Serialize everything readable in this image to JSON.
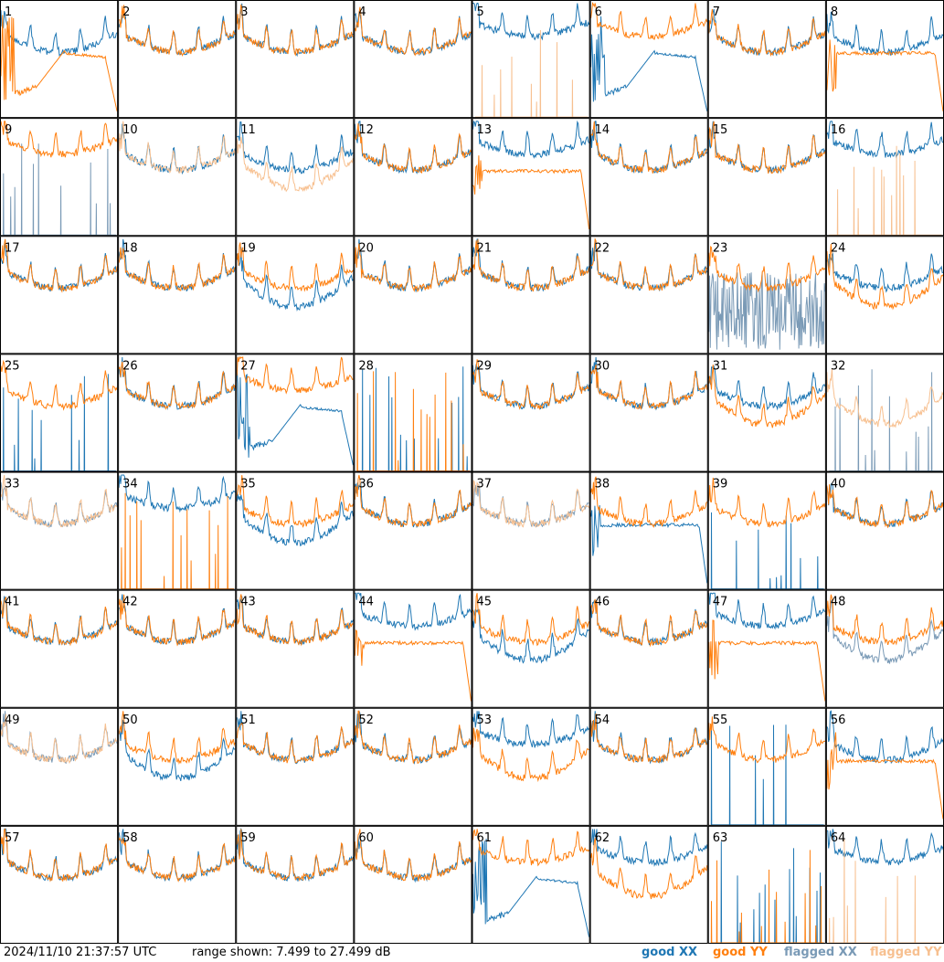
{
  "chart_data": {
    "type": "line",
    "description_panels": "8x8 grid of antenna spectra",
    "panels": [
      {
        "label": "1",
        "xx": "good",
        "yy": "good",
        "xx_shape": "ripple",
        "yy_shape": "broken_dip"
      },
      {
        "label": "2",
        "xx": "good",
        "yy": "good",
        "xx_shape": "ripple",
        "yy_shape": "ripple"
      },
      {
        "label": "3",
        "xx": "good",
        "yy": "good",
        "xx_shape": "ripple",
        "yy_shape": "ripple"
      },
      {
        "label": "4",
        "xx": "good",
        "yy": "good",
        "xx_shape": "ripple",
        "yy_shape": "ripple"
      },
      {
        "label": "5",
        "xx": "good",
        "yy": "flagged",
        "xx_shape": "ripple_high",
        "yy_shape": "spikes"
      },
      {
        "label": "6",
        "xx": "good",
        "yy": "good",
        "xx_shape": "broken_dip",
        "yy_shape": "ripple_high"
      },
      {
        "label": "7",
        "xx": "good",
        "yy": "good",
        "xx_shape": "ripple",
        "yy_shape": "ripple"
      },
      {
        "label": "8",
        "xx": "good",
        "yy": "good",
        "xx_shape": "ripple",
        "yy_shape": "broken_flat"
      },
      {
        "label": "9",
        "xx": "flagged",
        "yy": "good",
        "xx_shape": "spikes",
        "yy_shape": "ripple_high"
      },
      {
        "label": "10",
        "xx": "good",
        "yy": "flagged",
        "xx_shape": "ripple",
        "yy_shape": "ripple"
      },
      {
        "label": "11",
        "xx": "good",
        "yy": "flagged",
        "xx_shape": "ripple",
        "yy_shape": "ripple_low"
      },
      {
        "label": "12",
        "xx": "good",
        "yy": "good",
        "xx_shape": "ripple",
        "yy_shape": "ripple"
      },
      {
        "label": "13",
        "xx": "good",
        "yy": "good",
        "xx_shape": "ripple_high",
        "yy_shape": "broken_flat"
      },
      {
        "label": "14",
        "xx": "good",
        "yy": "good",
        "xx_shape": "ripple",
        "yy_shape": "ripple"
      },
      {
        "label": "15",
        "xx": "good",
        "yy": "good",
        "xx_shape": "ripple",
        "yy_shape": "ripple"
      },
      {
        "label": "16",
        "xx": "good",
        "yy": "flagged",
        "xx_shape": "ripple_high",
        "yy_shape": "spikes"
      },
      {
        "label": "17",
        "xx": "good",
        "yy": "good",
        "xx_shape": "ripple",
        "yy_shape": "ripple"
      },
      {
        "label": "18",
        "xx": "good",
        "yy": "good",
        "xx_shape": "ripple",
        "yy_shape": "ripple"
      },
      {
        "label": "19",
        "xx": "good",
        "yy": "good",
        "xx_shape": "ripple_low",
        "yy_shape": "ripple"
      },
      {
        "label": "20",
        "xx": "good",
        "yy": "good",
        "xx_shape": "ripple",
        "yy_shape": "ripple"
      },
      {
        "label": "21",
        "xx": "good",
        "yy": "good",
        "xx_shape": "ripple",
        "yy_shape": "ripple"
      },
      {
        "label": "22",
        "xx": "good",
        "yy": "good",
        "xx_shape": "ripple",
        "yy_shape": "ripple"
      },
      {
        "label": "23",
        "xx": "flagged",
        "yy": "good",
        "xx_shape": "noise",
        "yy_shape": "ripple"
      },
      {
        "label": "24",
        "xx": "good",
        "yy": "good",
        "xx_shape": "ripple",
        "yy_shape": "ripple_low"
      },
      {
        "label": "25",
        "xx": "good",
        "yy": "good",
        "xx_shape": "spikes",
        "yy_shape": "ripple"
      },
      {
        "label": "26",
        "xx": "good",
        "yy": "good",
        "xx_shape": "ripple",
        "yy_shape": "ripple"
      },
      {
        "label": "27",
        "xx": "good",
        "yy": "good",
        "xx_shape": "broken_dip",
        "yy_shape": "ripple_high"
      },
      {
        "label": "28",
        "xx": "good",
        "yy": "good",
        "xx_shape": "spikes",
        "yy_shape": "spikes"
      },
      {
        "label": "29",
        "xx": "good",
        "yy": "good",
        "xx_shape": "ripple",
        "yy_shape": "ripple"
      },
      {
        "label": "30",
        "xx": "good",
        "yy": "good",
        "xx_shape": "ripple",
        "yy_shape": "ripple"
      },
      {
        "label": "31",
        "xx": "good",
        "yy": "good",
        "xx_shape": "ripple",
        "yy_shape": "ripple_low"
      },
      {
        "label": "32",
        "xx": "flagged",
        "yy": "flagged",
        "xx_shape": "spikes",
        "yy_shape": "ripple_low"
      },
      {
        "label": "33",
        "xx": "flagged",
        "yy": "flagged",
        "xx_shape": "ripple",
        "yy_shape": "ripple"
      },
      {
        "label": "34",
        "xx": "good",
        "yy": "good",
        "xx_shape": "ripple_high",
        "yy_shape": "spikes"
      },
      {
        "label": "35",
        "xx": "good",
        "yy": "good",
        "xx_shape": "ripple_low",
        "yy_shape": "ripple"
      },
      {
        "label": "36",
        "xx": "good",
        "yy": "good",
        "xx_shape": "ripple",
        "yy_shape": "ripple"
      },
      {
        "label": "37",
        "xx": "flagged",
        "yy": "flagged",
        "xx_shape": "ripple",
        "yy_shape": "ripple"
      },
      {
        "label": "38",
        "xx": "good",
        "yy": "good",
        "xx_shape": "broken_flat",
        "yy_shape": "ripple"
      },
      {
        "label": "39",
        "xx": "good",
        "yy": "good",
        "xx_shape": "spikes",
        "yy_shape": "ripple"
      },
      {
        "label": "40",
        "xx": "good",
        "yy": "good",
        "xx_shape": "ripple",
        "yy_shape": "ripple"
      },
      {
        "label": "41",
        "xx": "good",
        "yy": "good",
        "xx_shape": "ripple",
        "yy_shape": "ripple"
      },
      {
        "label": "42",
        "xx": "good",
        "yy": "good",
        "xx_shape": "ripple",
        "yy_shape": "ripple"
      },
      {
        "label": "43",
        "xx": "good",
        "yy": "good",
        "xx_shape": "ripple",
        "yy_shape": "ripple"
      },
      {
        "label": "44",
        "xx": "good",
        "yy": "good",
        "xx_shape": "ripple_high",
        "yy_shape": "broken_flat"
      },
      {
        "label": "45",
        "xx": "good",
        "yy": "good",
        "xx_shape": "ripple_low",
        "yy_shape": "ripple"
      },
      {
        "label": "46",
        "xx": "good",
        "yy": "good",
        "xx_shape": "ripple",
        "yy_shape": "ripple"
      },
      {
        "label": "47",
        "xx": "good",
        "yy": "good",
        "xx_shape": "ripple_high",
        "yy_shape": "broken_flat"
      },
      {
        "label": "48",
        "xx": "flagged",
        "yy": "good",
        "xx_shape": "ripple_low",
        "yy_shape": "ripple"
      },
      {
        "label": "49",
        "xx": "flagged",
        "yy": "flagged",
        "xx_shape": "ripple",
        "yy_shape": "ripple"
      },
      {
        "label": "50",
        "xx": "good",
        "yy": "good",
        "xx_shape": "ripple_low",
        "yy_shape": "ripple"
      },
      {
        "label": "51",
        "xx": "good",
        "yy": "good",
        "xx_shape": "ripple",
        "yy_shape": "ripple"
      },
      {
        "label": "52",
        "xx": "good",
        "yy": "good",
        "xx_shape": "ripple",
        "yy_shape": "ripple"
      },
      {
        "label": "53",
        "xx": "good",
        "yy": "good",
        "xx_shape": "ripple_high",
        "yy_shape": "ripple_low"
      },
      {
        "label": "54",
        "xx": "good",
        "yy": "good",
        "xx_shape": "ripple",
        "yy_shape": "ripple"
      },
      {
        "label": "55",
        "xx": "good",
        "yy": "good",
        "xx_shape": "spikes",
        "yy_shape": "ripple"
      },
      {
        "label": "56",
        "xx": "good",
        "yy": "good",
        "xx_shape": "ripple",
        "yy_shape": "broken_flat"
      },
      {
        "label": "57",
        "xx": "good",
        "yy": "good",
        "xx_shape": "ripple",
        "yy_shape": "ripple"
      },
      {
        "label": "58",
        "xx": "good",
        "yy": "good",
        "xx_shape": "ripple",
        "yy_shape": "ripple"
      },
      {
        "label": "59",
        "xx": "good",
        "yy": "good",
        "xx_shape": "ripple",
        "yy_shape": "ripple"
      },
      {
        "label": "60",
        "xx": "good",
        "yy": "good",
        "xx_shape": "ripple",
        "yy_shape": "ripple"
      },
      {
        "label": "61",
        "xx": "good",
        "yy": "good",
        "xx_shape": "broken_dip",
        "yy_shape": "ripple_high"
      },
      {
        "label": "62",
        "xx": "good",
        "yy": "good",
        "xx_shape": "ripple_high",
        "yy_shape": "ripple_low"
      },
      {
        "label": "63",
        "xx": "good",
        "yy": "good",
        "xx_shape": "spikes",
        "yy_shape": "spikes"
      },
      {
        "label": "64",
        "xx": "good",
        "yy": "flagged",
        "xx_shape": "ripple_high",
        "yy_shape": "spikes"
      }
    ],
    "range_db": [
      7.499,
      27.499
    ]
  },
  "footer": {
    "timestamp": "2024/11/10 21:37:57 UTC",
    "range_text": "range shown: 7.499 to 27.499 dB"
  },
  "legend": [
    {
      "label": "good XX",
      "color": "#1f77b4"
    },
    {
      "label": "good YY",
      "color": "#ff7f0e"
    },
    {
      "label": "flagged XX",
      "color": "#7a9ab6"
    },
    {
      "label": "flagged YY",
      "color": "#f7c090"
    }
  ]
}
